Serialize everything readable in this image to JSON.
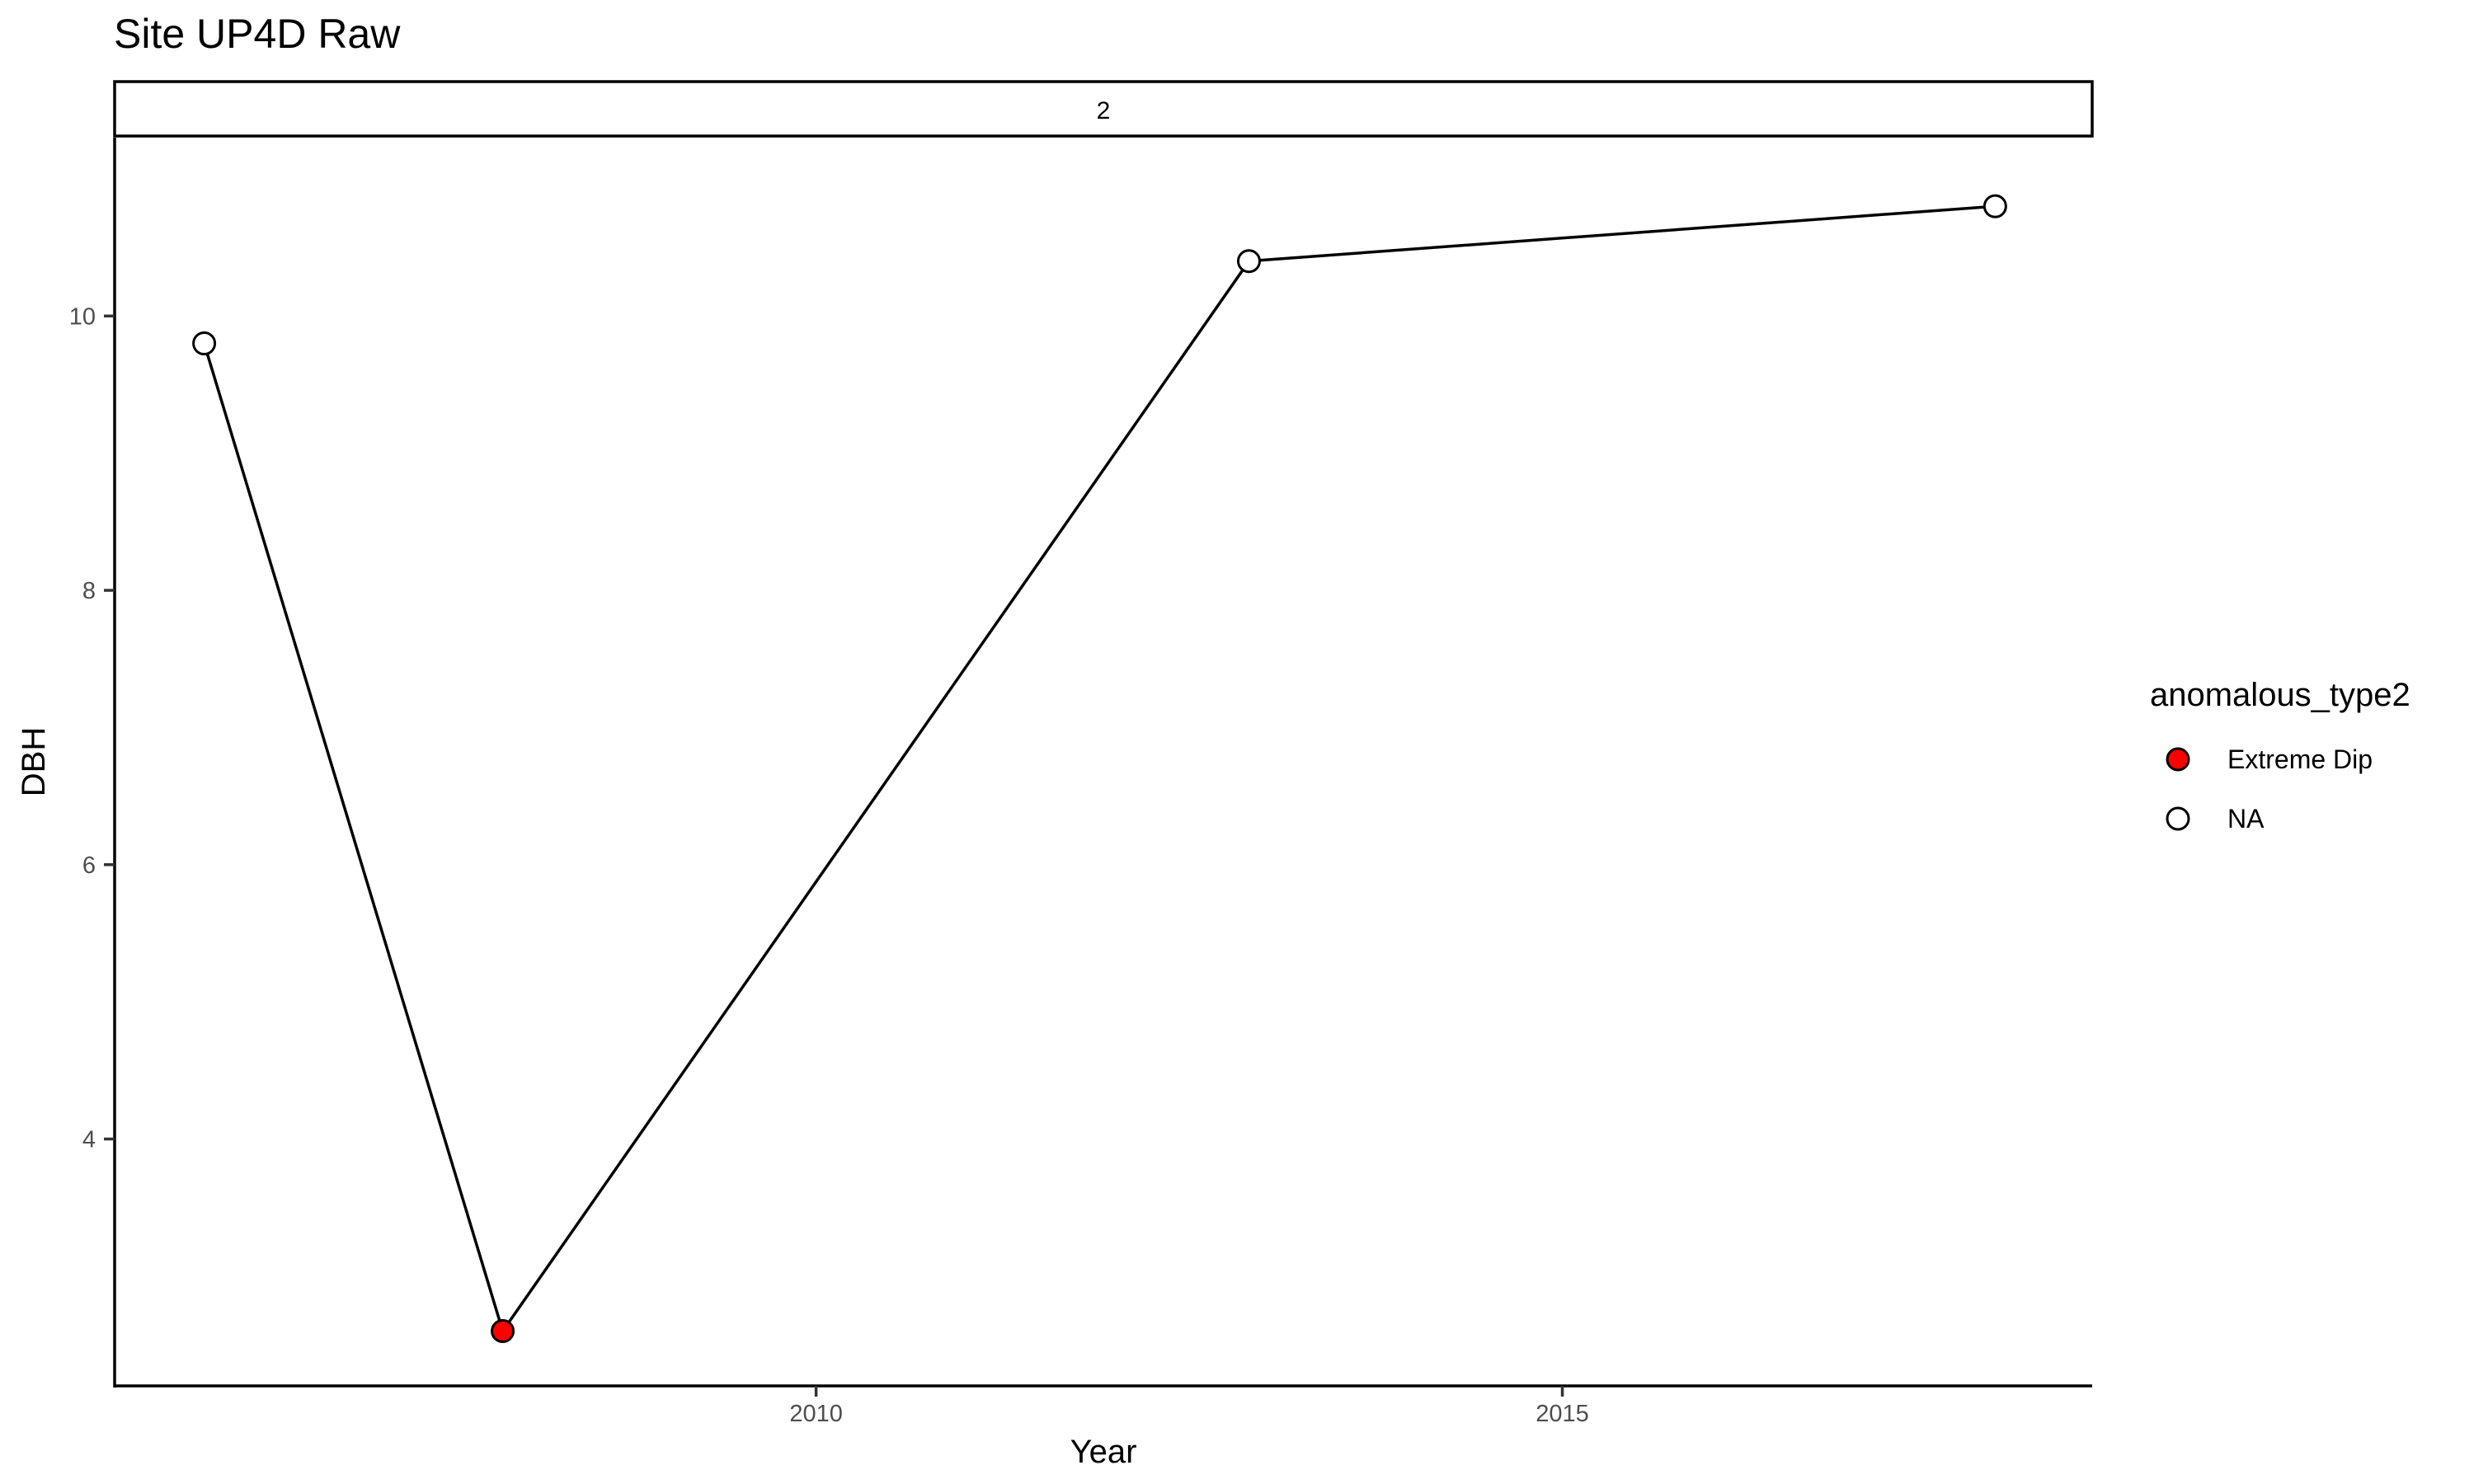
{
  "chart_data": {
    "type": "line",
    "title": "Site UP4D Raw",
    "facet_label": "2",
    "xlabel": "Year",
    "ylabel": "DBH",
    "xlim": [
      2005.3,
      2018.55
    ],
    "ylim": [
      2.2,
      11.3
    ],
    "x_ticks": [
      2010,
      2015
    ],
    "y_ticks": [
      4,
      6,
      8,
      10
    ],
    "grid": false,
    "series": [
      {
        "name": "DBH",
        "points": [
          {
            "x": 2005.9,
            "y": 9.8,
            "anomalous_type2": "NA"
          },
          {
            "x": 2007.9,
            "y": 2.6,
            "anomalous_type2": "Extreme Dip"
          },
          {
            "x": 2012.9,
            "y": 10.4,
            "anomalous_type2": "NA"
          },
          {
            "x": 2017.9,
            "y": 10.8,
            "anomalous_type2": "NA"
          }
        ]
      }
    ],
    "legend": {
      "title": "anomalous_type2",
      "position": "right",
      "entries": [
        {
          "label": "Extreme Dip",
          "fill": "#ff0000"
        },
        {
          "label": "NA",
          "fill": "#ffffff"
        }
      ]
    }
  }
}
